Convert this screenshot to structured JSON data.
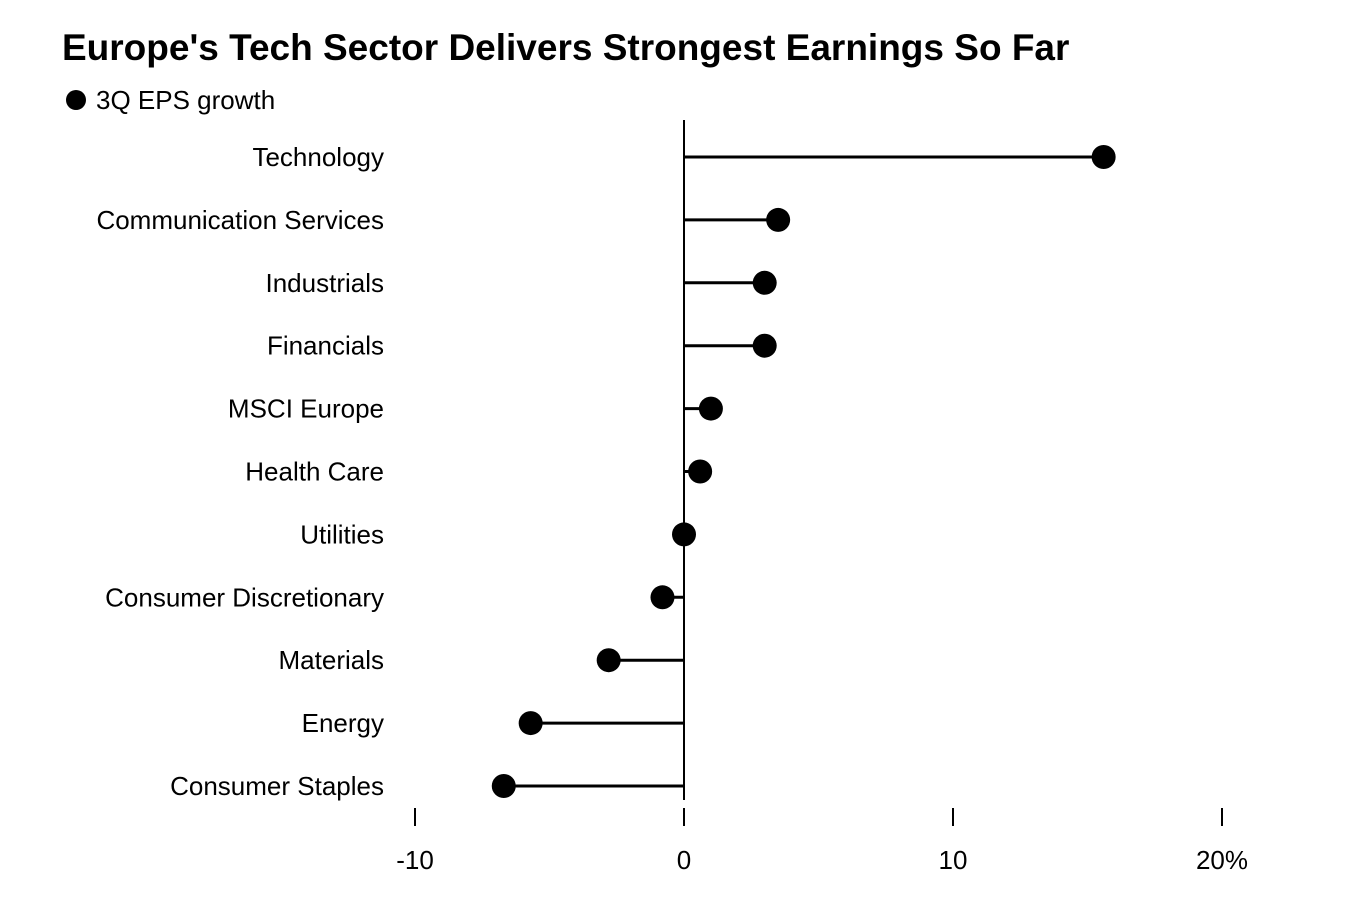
{
  "chart_data": {
    "type": "lollipop",
    "title": "Europe's Tech Sector Delivers Strongest Earnings So Far",
    "legend": [
      {
        "name": "3Q EPS growth",
        "color": "#000000"
      }
    ],
    "legend_position": "top-left",
    "categories": [
      "Technology",
      "Communication Services",
      "Industrials",
      "Financials",
      "MSCI Europe",
      "Health Care",
      "Utilities",
      "Consumer Discretionary",
      "Materials",
      "Energy",
      "Consumer Staples"
    ],
    "series": [
      {
        "name": "3Q EPS growth",
        "values": [
          15.6,
          3.5,
          3.0,
          3.0,
          1.0,
          0.6,
          0.0,
          -0.8,
          -2.8,
          -5.7,
          -6.7
        ]
      }
    ],
    "xlim": [
      -10,
      20
    ],
    "xticks": [
      -10,
      0,
      10,
      20
    ],
    "xtick_labels": [
      "-10",
      "0",
      "10",
      "20%"
    ],
    "xlabel": "",
    "ylabel": "",
    "grid": false
  }
}
